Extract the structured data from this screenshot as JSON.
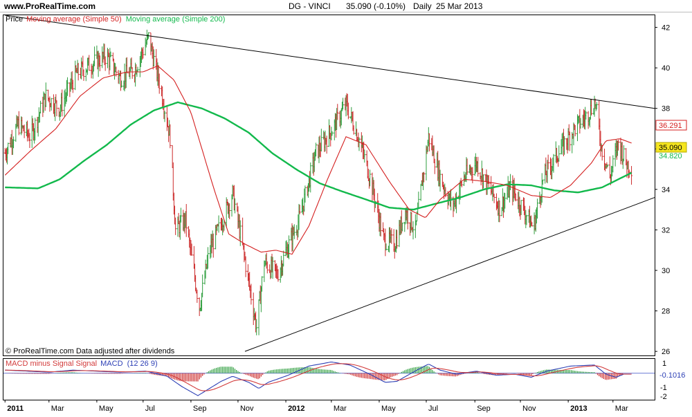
{
  "header": {
    "site": "www.ProRealTime.com",
    "instrument": "DG - VINCI",
    "quote": "35.090 (-0.10%)",
    "period": "Daily",
    "date": "25 Mar 2013"
  },
  "legend": {
    "price_label": "Price",
    "ma50_label": "Moving average (Simple 50)",
    "ma200_label": "Moving average (Simple 200)"
  },
  "footer_note": "© ProRealTime.com  Data adjusted after dividends",
  "colors": {
    "up_bar": "#2e9e3e",
    "down_bar": "#cc2a2a",
    "ma50": "#d41f1f",
    "ma200": "#12b94c",
    "trendline": "#000000",
    "macd_line": "#2c3fb5",
    "signal_line": "#d23a3a",
    "last_price_bg": "#f5e51f"
  },
  "macd_panel": {
    "title_part1": "MACD minus Signal Signal",
    "title_part2": "MACD",
    "title_part3": "(12 26 9)",
    "y_labels": [
      "1",
      "-1",
      "-2"
    ],
    "last_value": "-0.1016"
  },
  "price_tags": {
    "ma50": "36.291",
    "last": "35.090",
    "ma200": "34.820"
  },
  "chart_data": {
    "type": "ohlc",
    "title": "DG - VINCI  35.090 (-0.10%)  Daily  25 Mar 2013",
    "y_axis": {
      "ticks": [
        26,
        28,
        30,
        32,
        34,
        36,
        38,
        40,
        42
      ],
      "range": [
        25.8,
        42.6
      ],
      "side": "right"
    },
    "x_axis": {
      "range": [
        "2011-01-01",
        "2013-04-24"
      ],
      "ticks": [
        {
          "date": "2011-01-03",
          "label": "2011",
          "bold": true
        },
        {
          "date": "2011-03-01",
          "label": "Mar"
        },
        {
          "date": "2011-05-02",
          "label": "May"
        },
        {
          "date": "2011-07-01",
          "label": "Jul"
        },
        {
          "date": "2011-09-01",
          "label": "Sep"
        },
        {
          "date": "2011-11-01",
          "label": "Nov"
        },
        {
          "date": "2012-01-02",
          "label": "2012",
          "bold": true
        },
        {
          "date": "2012-03-01",
          "label": "Mar"
        },
        {
          "date": "2012-05-02",
          "label": "May"
        },
        {
          "date": "2012-07-02",
          "label": "Jul"
        },
        {
          "date": "2012-09-03",
          "label": "Sep"
        },
        {
          "date": "2012-11-01",
          "label": "Nov"
        },
        {
          "date": "2013-01-02",
          "label": "2013",
          "bold": true
        },
        {
          "date": "2013-03-01",
          "label": "Mar"
        }
      ]
    },
    "series": [
      {
        "name": "Price",
        "kind": "ohlc",
        "anchors": [
          {
            "date": "2011-01-03",
            "close": 35.8
          },
          {
            "date": "2011-01-20",
            "close": 37.2
          },
          {
            "date": "2011-02-05",
            "close": 36.6
          },
          {
            "date": "2011-02-25",
            "close": 38.6
          },
          {
            "date": "2011-03-15",
            "close": 38.0
          },
          {
            "date": "2011-04-05",
            "close": 39.7
          },
          {
            "date": "2011-04-25",
            "close": 40.2
          },
          {
            "date": "2011-05-15",
            "close": 40.6
          },
          {
            "date": "2011-06-01",
            "close": 39.5
          },
          {
            "date": "2011-06-20",
            "close": 39.9
          },
          {
            "date": "2011-07-08",
            "close": 41.5
          },
          {
            "date": "2011-07-25",
            "close": 38.8
          },
          {
            "date": "2011-08-05",
            "close": 36.6
          },
          {
            "date": "2011-08-12",
            "close": 32.0
          },
          {
            "date": "2011-08-25",
            "close": 32.5
          },
          {
            "date": "2011-09-12",
            "close": 28.2
          },
          {
            "date": "2011-09-25",
            "close": 31.0
          },
          {
            "date": "2011-10-10",
            "close": 32.3
          },
          {
            "date": "2011-10-25",
            "close": 33.8
          },
          {
            "date": "2011-11-05",
            "close": 31.6
          },
          {
            "date": "2011-11-25",
            "close": 27.2
          },
          {
            "date": "2011-12-05",
            "close": 30.4
          },
          {
            "date": "2011-12-22",
            "close": 29.8
          },
          {
            "date": "2012-01-05",
            "close": 31.2
          },
          {
            "date": "2012-01-20",
            "close": 32.6
          },
          {
            "date": "2012-02-10",
            "close": 35.8
          },
          {
            "date": "2012-03-01",
            "close": 36.9
          },
          {
            "date": "2012-03-20",
            "close": 38.2
          },
          {
            "date": "2012-04-05",
            "close": 36.6
          },
          {
            "date": "2012-04-20",
            "close": 34.6
          },
          {
            "date": "2012-05-08",
            "close": 31.5
          },
          {
            "date": "2012-05-22",
            "close": 31.3
          },
          {
            "date": "2012-06-05",
            "close": 32.9
          },
          {
            "date": "2012-06-18",
            "close": 32.0
          },
          {
            "date": "2012-07-05",
            "close": 36.6
          },
          {
            "date": "2012-07-20",
            "close": 34.6
          },
          {
            "date": "2012-08-05",
            "close": 33.1
          },
          {
            "date": "2012-08-20",
            "close": 34.6
          },
          {
            "date": "2012-09-05",
            "close": 35.3
          },
          {
            "date": "2012-09-20",
            "close": 34.2
          },
          {
            "date": "2012-10-05",
            "close": 33.1
          },
          {
            "date": "2012-10-20",
            "close": 34.1
          },
          {
            "date": "2012-11-05",
            "close": 33.0
          },
          {
            "date": "2012-11-18",
            "close": 32.1
          },
          {
            "date": "2012-12-01",
            "close": 34.6
          },
          {
            "date": "2012-12-20",
            "close": 35.8
          },
          {
            "date": "2013-01-10",
            "close": 37.0
          },
          {
            "date": "2013-01-25",
            "close": 37.6
          },
          {
            "date": "2013-02-06",
            "close": 38.3
          },
          {
            "date": "2013-02-14",
            "close": 36.1
          },
          {
            "date": "2013-02-25",
            "close": 34.6
          },
          {
            "date": "2013-03-08",
            "close": 36.3
          },
          {
            "date": "2013-03-18",
            "close": 35.3
          },
          {
            "date": "2013-03-25",
            "close": 35.09
          }
        ]
      },
      {
        "name": "Moving average (Simple 50)",
        "kind": "line",
        "points": [
          {
            "date": "2011-01-03",
            "value": 34.7
          },
          {
            "date": "2011-02-05",
            "value": 35.9
          },
          {
            "date": "2011-03-10",
            "value": 37.0
          },
          {
            "date": "2011-04-10",
            "value": 38.6
          },
          {
            "date": "2011-05-10",
            "value": 39.5
          },
          {
            "date": "2011-06-10",
            "value": 39.8
          },
          {
            "date": "2011-07-01",
            "value": 39.8
          },
          {
            "date": "2011-07-20",
            "value": 40.1
          },
          {
            "date": "2011-08-10",
            "value": 39.4
          },
          {
            "date": "2011-09-01",
            "value": 37.8
          },
          {
            "date": "2011-10-01",
            "value": 34.0
          },
          {
            "date": "2011-10-20",
            "value": 31.8
          },
          {
            "date": "2011-11-10",
            "value": 31.3
          },
          {
            "date": "2011-12-01",
            "value": 30.9
          },
          {
            "date": "2011-12-20",
            "value": 31.0
          },
          {
            "date": "2012-01-10",
            "value": 30.8
          },
          {
            "date": "2012-02-01",
            "value": 32.2
          },
          {
            "date": "2012-02-25",
            "value": 34.5
          },
          {
            "date": "2012-03-20",
            "value": 36.6
          },
          {
            "date": "2012-04-15",
            "value": 36.2
          },
          {
            "date": "2012-05-15",
            "value": 34.4
          },
          {
            "date": "2012-06-10",
            "value": 33.0
          },
          {
            "date": "2012-07-01",
            "value": 32.6
          },
          {
            "date": "2012-07-20",
            "value": 33.5
          },
          {
            "date": "2012-08-20",
            "value": 34.5
          },
          {
            "date": "2012-09-15",
            "value": 34.4
          },
          {
            "date": "2012-10-15",
            "value": 34.2
          },
          {
            "date": "2012-11-15",
            "value": 33.7
          },
          {
            "date": "2012-12-10",
            "value": 33.6
          },
          {
            "date": "2013-01-05",
            "value": 34.2
          },
          {
            "date": "2013-02-01",
            "value": 35.3
          },
          {
            "date": "2013-02-20",
            "value": 36.4
          },
          {
            "date": "2013-03-10",
            "value": 36.5
          },
          {
            "date": "2013-03-25",
            "value": 36.29
          }
        ]
      },
      {
        "name": "Moving average (Simple 200)",
        "kind": "line",
        "points": [
          {
            "date": "2011-01-03",
            "value": 34.1
          },
          {
            "date": "2011-02-15",
            "value": 34.05
          },
          {
            "date": "2011-03-15",
            "value": 34.5
          },
          {
            "date": "2011-04-15",
            "value": 35.4
          },
          {
            "date": "2011-05-15",
            "value": 36.2
          },
          {
            "date": "2011-06-15",
            "value": 37.2
          },
          {
            "date": "2011-07-15",
            "value": 37.9
          },
          {
            "date": "2011-08-15",
            "value": 38.3
          },
          {
            "date": "2011-09-15",
            "value": 38.0
          },
          {
            "date": "2011-10-15",
            "value": 37.5
          },
          {
            "date": "2011-11-15",
            "value": 36.8
          },
          {
            "date": "2011-12-15",
            "value": 35.8
          },
          {
            "date": "2012-01-15",
            "value": 35.0
          },
          {
            "date": "2012-02-15",
            "value": 34.3
          },
          {
            "date": "2012-03-15",
            "value": 33.9
          },
          {
            "date": "2012-04-15",
            "value": 33.5
          },
          {
            "date": "2012-05-15",
            "value": 33.1
          },
          {
            "date": "2012-06-15",
            "value": 33.0
          },
          {
            "date": "2012-07-15",
            "value": 33.3
          },
          {
            "date": "2012-08-15",
            "value": 33.6
          },
          {
            "date": "2012-09-15",
            "value": 34.0
          },
          {
            "date": "2012-10-15",
            "value": 34.25
          },
          {
            "date": "2012-11-15",
            "value": 34.2
          },
          {
            "date": "2012-12-15",
            "value": 33.95
          },
          {
            "date": "2013-01-15",
            "value": 33.85
          },
          {
            "date": "2013-02-15",
            "value": 34.1
          },
          {
            "date": "2013-03-25",
            "value": 34.82
          }
        ]
      }
    ],
    "trendlines": [
      {
        "name": "upper",
        "start": {
          "date": "2011-01-03",
          "value": 42.6
        },
        "end": {
          "date": "2013-04-24",
          "value": 38.0
        }
      },
      {
        "name": "lower",
        "start": {
          "date": "2011-11-10",
          "value": 26.0
        },
        "end": {
          "date": "2013-04-24",
          "value": 33.6
        }
      }
    ],
    "macd": {
      "y_range": [
        -2.6,
        1.4
      ],
      "zero_line": 0,
      "points": [
        {
          "date": "2011-01-03",
          "value": 0.3
        },
        {
          "date": "2011-02-01",
          "value": 0.2
        },
        {
          "date": "2011-03-01",
          "value": 0.1
        },
        {
          "date": "2011-04-01",
          "value": 0.3
        },
        {
          "date": "2011-05-01",
          "value": 0.2
        },
        {
          "date": "2011-06-01",
          "value": 0.1
        },
        {
          "date": "2011-07-05",
          "value": 0.2
        },
        {
          "date": "2011-08-01",
          "value": -0.3
        },
        {
          "date": "2011-08-20",
          "value": -1.3
        },
        {
          "date": "2011-09-10",
          "value": -2.2
        },
        {
          "date": "2011-09-25",
          "value": -1.5
        },
        {
          "date": "2011-10-10",
          "value": -0.8
        },
        {
          "date": "2011-10-25",
          "value": -0.3
        },
        {
          "date": "2011-11-15",
          "value": -0.9
        },
        {
          "date": "2011-11-28",
          "value": -1.5
        },
        {
          "date": "2011-12-10",
          "value": -0.9
        },
        {
          "date": "2012-01-05",
          "value": -0.2
        },
        {
          "date": "2012-02-01",
          "value": 0.7
        },
        {
          "date": "2012-03-01",
          "value": 1.1
        },
        {
          "date": "2012-03-25",
          "value": 0.8
        },
        {
          "date": "2012-04-20",
          "value": -0.1
        },
        {
          "date": "2012-05-10",
          "value": -0.9
        },
        {
          "date": "2012-05-25",
          "value": -0.8
        },
        {
          "date": "2012-06-15",
          "value": 0.1
        },
        {
          "date": "2012-07-05",
          "value": 0.9
        },
        {
          "date": "2012-07-20",
          "value": 0.3
        },
        {
          "date": "2012-08-10",
          "value": -0.1
        },
        {
          "date": "2012-09-05",
          "value": 0.2
        },
        {
          "date": "2012-10-01",
          "value": -0.2
        },
        {
          "date": "2012-10-25",
          "value": -0.1
        },
        {
          "date": "2012-11-15",
          "value": -0.4
        },
        {
          "date": "2012-12-05",
          "value": 0.2
        },
        {
          "date": "2013-01-05",
          "value": 0.7
        },
        {
          "date": "2013-02-05",
          "value": 0.8
        },
        {
          "date": "2013-02-20",
          "value": -0.1
        },
        {
          "date": "2013-03-05",
          "value": -0.4
        },
        {
          "date": "2013-03-15",
          "value": -0.1
        },
        {
          "date": "2013-03-25",
          "value": -0.1
        }
      ]
    }
  }
}
